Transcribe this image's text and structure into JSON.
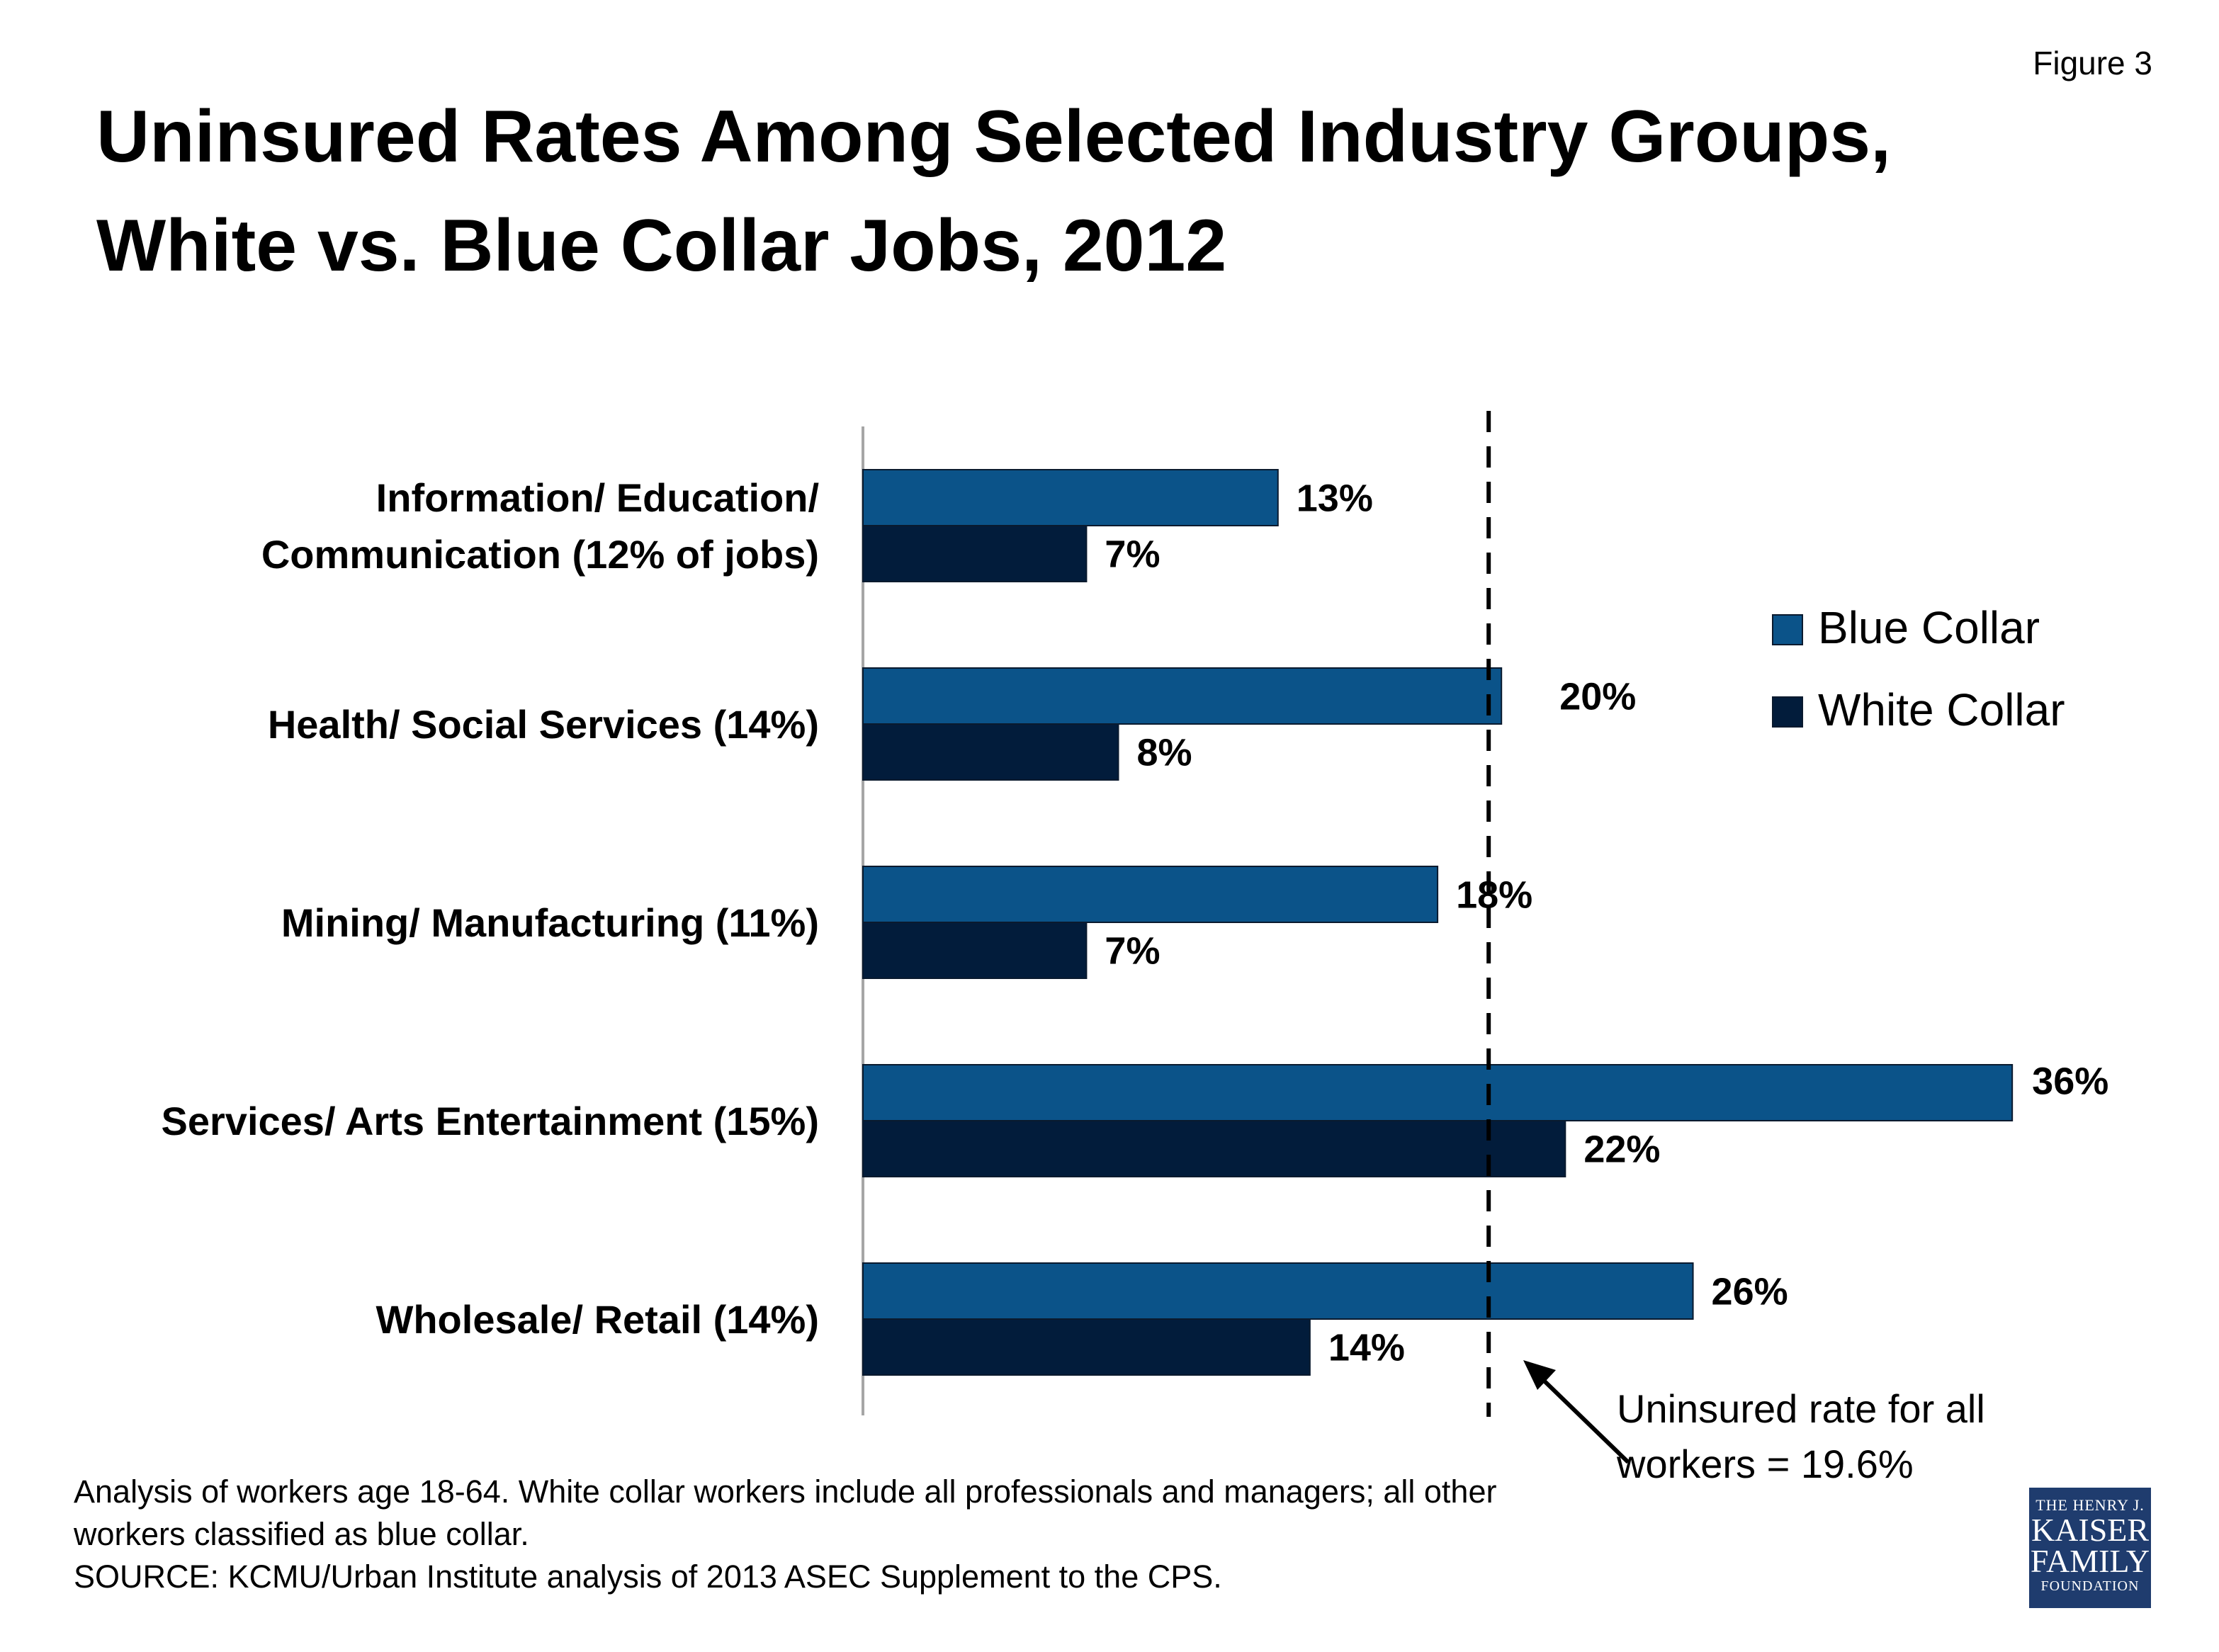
{
  "figure_label": "Figure 3",
  "title_line1": "Uninsured Rates Among Selected Industry Groups,",
  "title_line2": "White vs. Blue Collar Jobs, 2012",
  "colors": {
    "blue_collar": "#0b5389",
    "white_collar": "#021c3b",
    "reference_line": "#000000"
  },
  "chart_data": {
    "type": "bar",
    "orientation": "horizontal",
    "title": "Uninsured Rates Among Selected Industry Groups, White vs. Blue Collar Jobs, 2012",
    "categories": [
      [
        "Information/ Education/",
        "Communication (12% of jobs)"
      ],
      [
        "Health/ Social Services (14%)"
      ],
      [
        "Mining/ Manufacturing (11%)"
      ],
      [
        "Services/ Arts Entertainment (15%)"
      ],
      [
        "Wholesale/ Retail (14%)"
      ]
    ],
    "series": [
      {
        "name": "Blue Collar",
        "values": [
          13,
          20,
          18,
          36,
          26
        ],
        "labels": [
          "13%",
          "20%",
          "18%",
          "36%",
          "26%"
        ]
      },
      {
        "name": "White Collar",
        "values": [
          7,
          8,
          7,
          22,
          14
        ],
        "labels": [
          "7%",
          "8%",
          "7%",
          "22%",
          "14%"
        ]
      }
    ],
    "xlim": [
      0,
      36
    ],
    "reference_line": {
      "value": 19.6,
      "label_lines": [
        "Uninsured rate for all",
        "workers = 19.6%"
      ]
    },
    "legend": "right",
    "grid": false
  },
  "footnote": [
    "Analysis of workers age 18-64. White collar workers include all professionals and managers; all other",
    "workers classified as blue collar.",
    "SOURCE: KCMU/Urban Institute analysis of 2013 ASEC Supplement to the CPS."
  ],
  "logo": {
    "line1": "THE HENRY J.",
    "line2": "KAISER",
    "line3": "FAMILY",
    "line4": "FOUNDATION"
  }
}
